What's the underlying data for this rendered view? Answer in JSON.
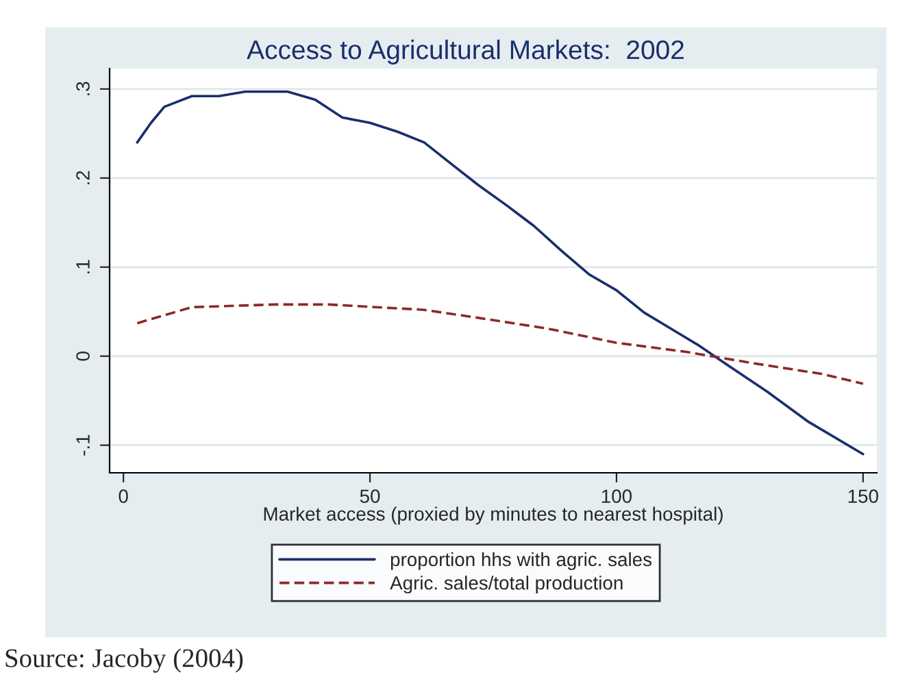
{
  "chart_data": {
    "type": "line",
    "title": "Access to Agricultural Markets:  2002",
    "xlabel": "Market access (proxied by minutes to nearest hospital)",
    "xlim": [
      -2.8,
      152.8
    ],
    "xticks": [
      0,
      50,
      100,
      150
    ],
    "ylim": [
      -0.131,
      0.323
    ],
    "yticks": [
      {
        "value": -0.1,
        "label": "-.1"
      },
      {
        "value": 0,
        "label": "0"
      },
      {
        "value": 0.1,
        "label": ".1"
      },
      {
        "value": 0.2,
        "label": ".2"
      },
      {
        "value": 0.3,
        "label": ".3"
      }
    ],
    "grid": "y",
    "legend": "bottom",
    "series": [
      {
        "name": "proportion hhs with agric. sales",
        "color": "#1a2f6b",
        "line_style": "solid",
        "x": [
          2.8,
          5.6,
          8.3,
          13.9,
          19.4,
          24.7,
          33.3,
          38.9,
          44.4,
          50,
          55.6,
          61,
          66.7,
          72,
          77.8,
          83.3,
          88.9,
          94.4,
          100,
          105.6,
          111,
          116.7,
          122,
          130.6,
          139,
          150
        ],
        "values": [
          0.24,
          0.262,
          0.28,
          0.292,
          0.292,
          0.297,
          0.297,
          0.288,
          0.268,
          0.262,
          0.252,
          0.24,
          0.215,
          0.192,
          0.169,
          0.146,
          0.118,
          0.092,
          0.074,
          0.049,
          0.031,
          0.012,
          -0.008,
          -0.04,
          -0.074,
          -0.11
        ]
      },
      {
        "name": "Agric. sales/total production",
        "color": "#8b2a2a",
        "line_style": "dashed",
        "x": [
          2.8,
          8.3,
          13.9,
          30.6,
          41.7,
          61,
          72,
          86,
          100,
          113.9,
          127.8,
          141.7,
          150
        ],
        "values": [
          0.037,
          0.046,
          0.055,
          0.058,
          0.058,
          0.052,
          0.043,
          0.031,
          0.015,
          0.005,
          -0.008,
          -0.02,
          -0.031
        ]
      }
    ],
    "annotations": [
      "Source: Jacoby (2004)"
    ]
  }
}
